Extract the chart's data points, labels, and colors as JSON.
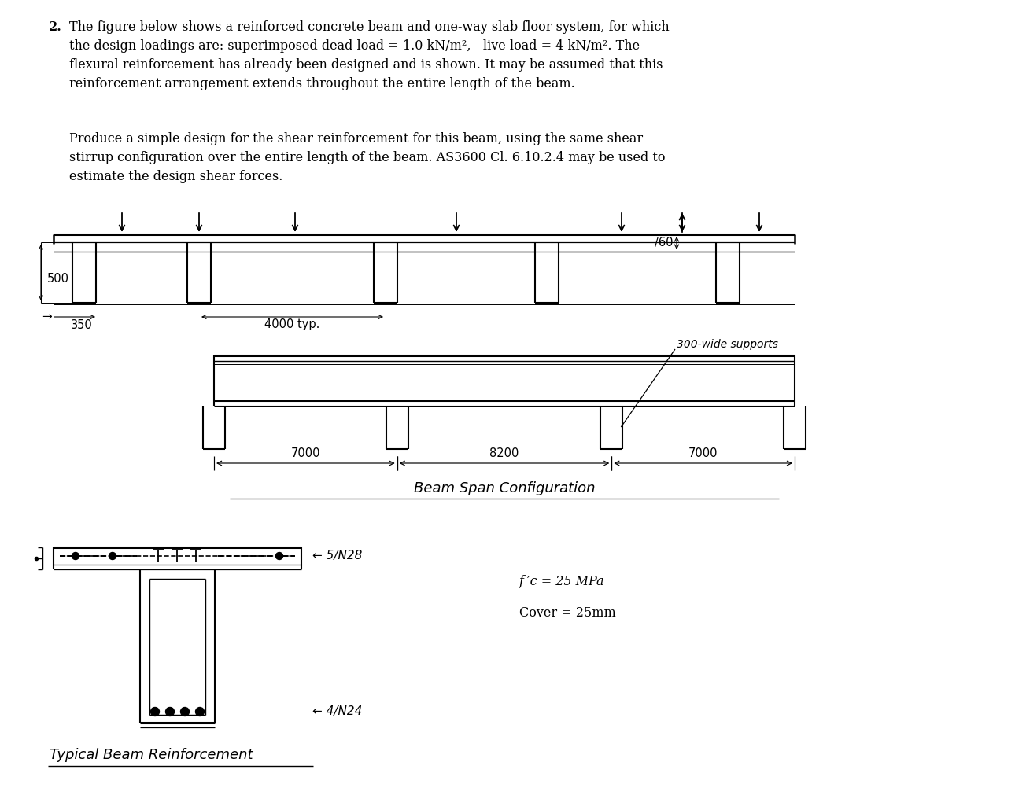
{
  "background_color": "#ffffff",
  "figsize": [
    12.9,
    10.16
  ],
  "dpi": 100,
  "para1_num": "2.",
  "para1": "The figure below shows a reinforced concrete beam and one-way slab floor system, for which\nthe design loadings are: superimposed dead load = 1.0 kN/m²,   live load = 4 kN/m². The\nflexural reinforcement has already been designed and is shown. It may be assumed that this\nreinforcement arrangement extends throughout the entire length of the beam.",
  "para2": "Produce a simple design for the shear reinforcement for this beam, using the same shear\nstirrup configuration over the entire length of the beam. AS3600 Cl. 6.10.2.4 may be used to\nestimate the design shear forces.",
  "dim_500": "500",
  "dim_350": "350",
  "dim_4000": "4000 typ.",
  "dim_160": "/60",
  "ann_supports": "300-wide supports",
  "dim_7000l": "7000",
  "dim_8200": "8200",
  "dim_7000r": "7000",
  "title_span": "Beam Span Configuration",
  "lbl_5n28": "← 5/N28",
  "lbl_4n24": "← 4/N24",
  "fc_text": "f ′c = 25 MPa",
  "cover_text": "Cover = 25mm",
  "title_reinf": "Typical Beam Reinforcement"
}
